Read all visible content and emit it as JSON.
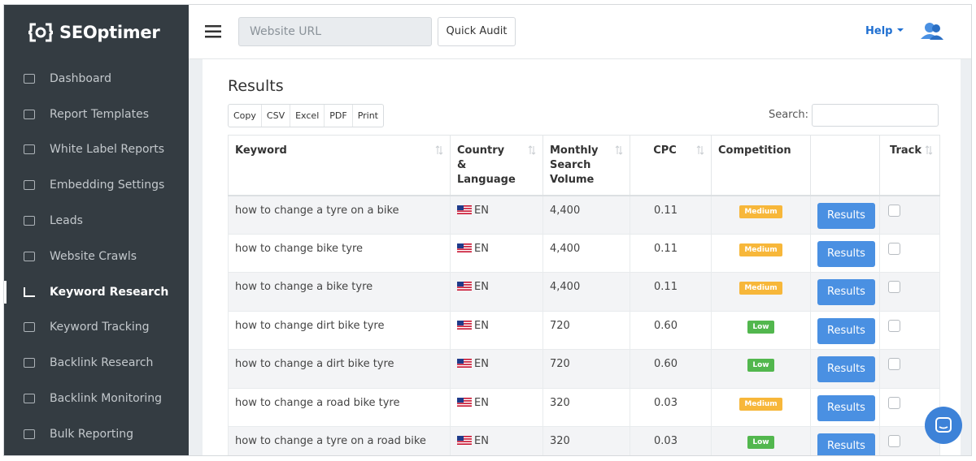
{
  "sidebar": {
    "logo": "SEOptimer",
    "menu": [
      "Dashboard",
      "Report Templates",
      "White Label Reports",
      "Embedding Settings",
      "Leads",
      "Website Crawls",
      "Keyword Research",
      "Keyword Tracking",
      "Backlink Research",
      "Backlink Monitoring",
      "Bulk Reporting"
    ]
  },
  "topbar": {
    "url_placeholder": "Website URL",
    "quick_audit": "Quick Audit",
    "help": "Help"
  },
  "results": {
    "title": "Results",
    "export_buttons": [
      "Copy",
      "CSV",
      "Excel",
      "PDF",
      "Print"
    ],
    "search_label": "Search:",
    "table": {
      "headers": {
        "keyword": "Keyword",
        "country": "Country & Language",
        "volume": "Monthly Search Volume",
        "cpc": "CPC",
        "competition": "Competition",
        "track": "Track"
      },
      "action_label": "Results",
      "rows": [
        {
          "keyword": "how to change a tyre on a bike",
          "language": "EN",
          "volume": "4,400",
          "cpc": "0.11",
          "competition": "Medium",
          "color": "#f7b73a"
        },
        {
          "keyword": "how to change bike tyre",
          "language": "EN",
          "volume": "4,400",
          "cpc": "0.11",
          "competition": "Medium",
          "color": "#f7b73a"
        },
        {
          "keyword": "how to change a bike tyre",
          "language": "EN",
          "volume": "4,400",
          "cpc": "0.11",
          "competition": "Medium",
          "color": "#f7b73a"
        },
        {
          "keyword": "how to change dirt bike tyre",
          "language": "EN",
          "volume": "720",
          "cpc": "0.60",
          "competition": "Low",
          "color": "#52b74e"
        },
        {
          "keyword": "how to change a dirt bike tyre",
          "language": "EN",
          "volume": "720",
          "cpc": "0.60",
          "competition": "Low",
          "color": "#52b74e"
        },
        {
          "keyword": "how to change a road bike tyre",
          "language": "EN",
          "volume": "320",
          "cpc": "0.03",
          "competition": "Medium",
          "color": "#f7b73a"
        },
        {
          "keyword": "how to change a tyre on a road bike",
          "language": "EN",
          "volume": "320",
          "cpc": "0.03",
          "competition": "Low",
          "color": "#52b74e"
        }
      ]
    }
  }
}
